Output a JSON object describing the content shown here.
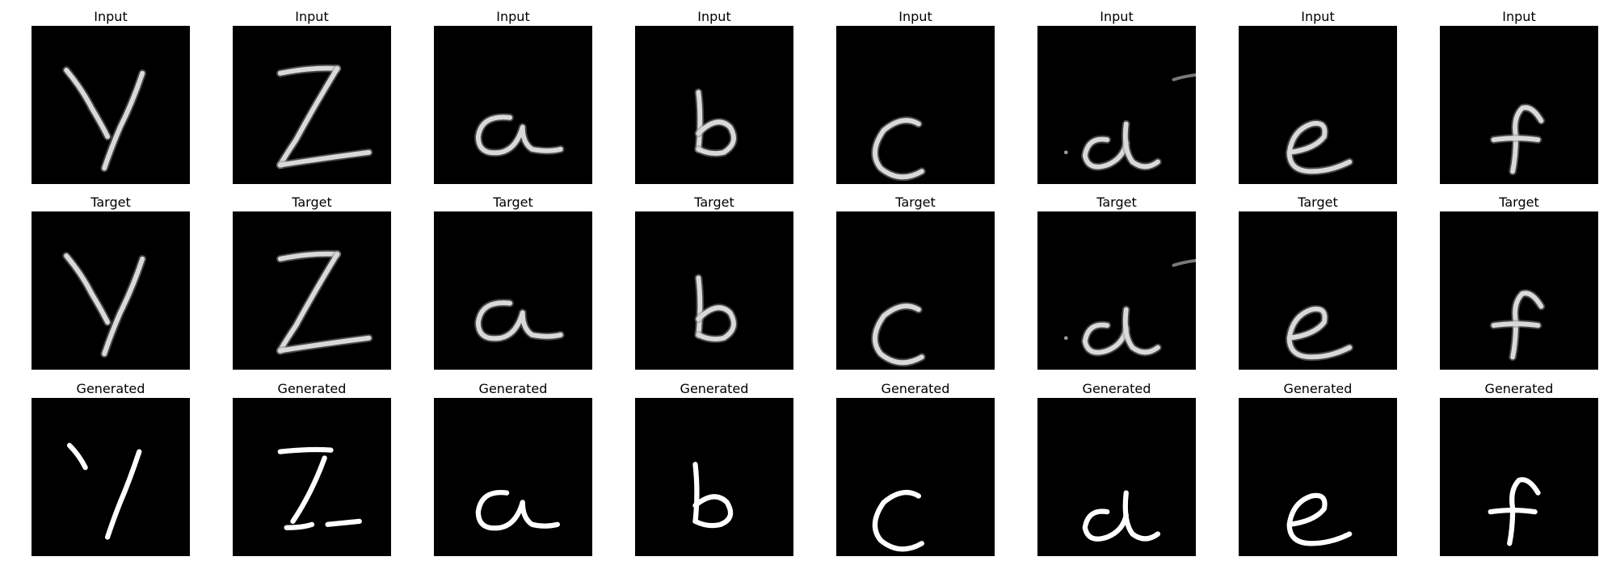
{
  "figure": {
    "row_titles": [
      "Input",
      "Target",
      "Generated"
    ],
    "samples": [
      "Y",
      "Z",
      "a",
      "b",
      "c",
      "d",
      "e",
      "f"
    ],
    "colors": {
      "background": "#ffffff",
      "image_background": "#000000",
      "stroke_soft": "#d9d9d9",
      "stroke_sharp": "#ffffff",
      "title_text": "#000000"
    }
  }
}
